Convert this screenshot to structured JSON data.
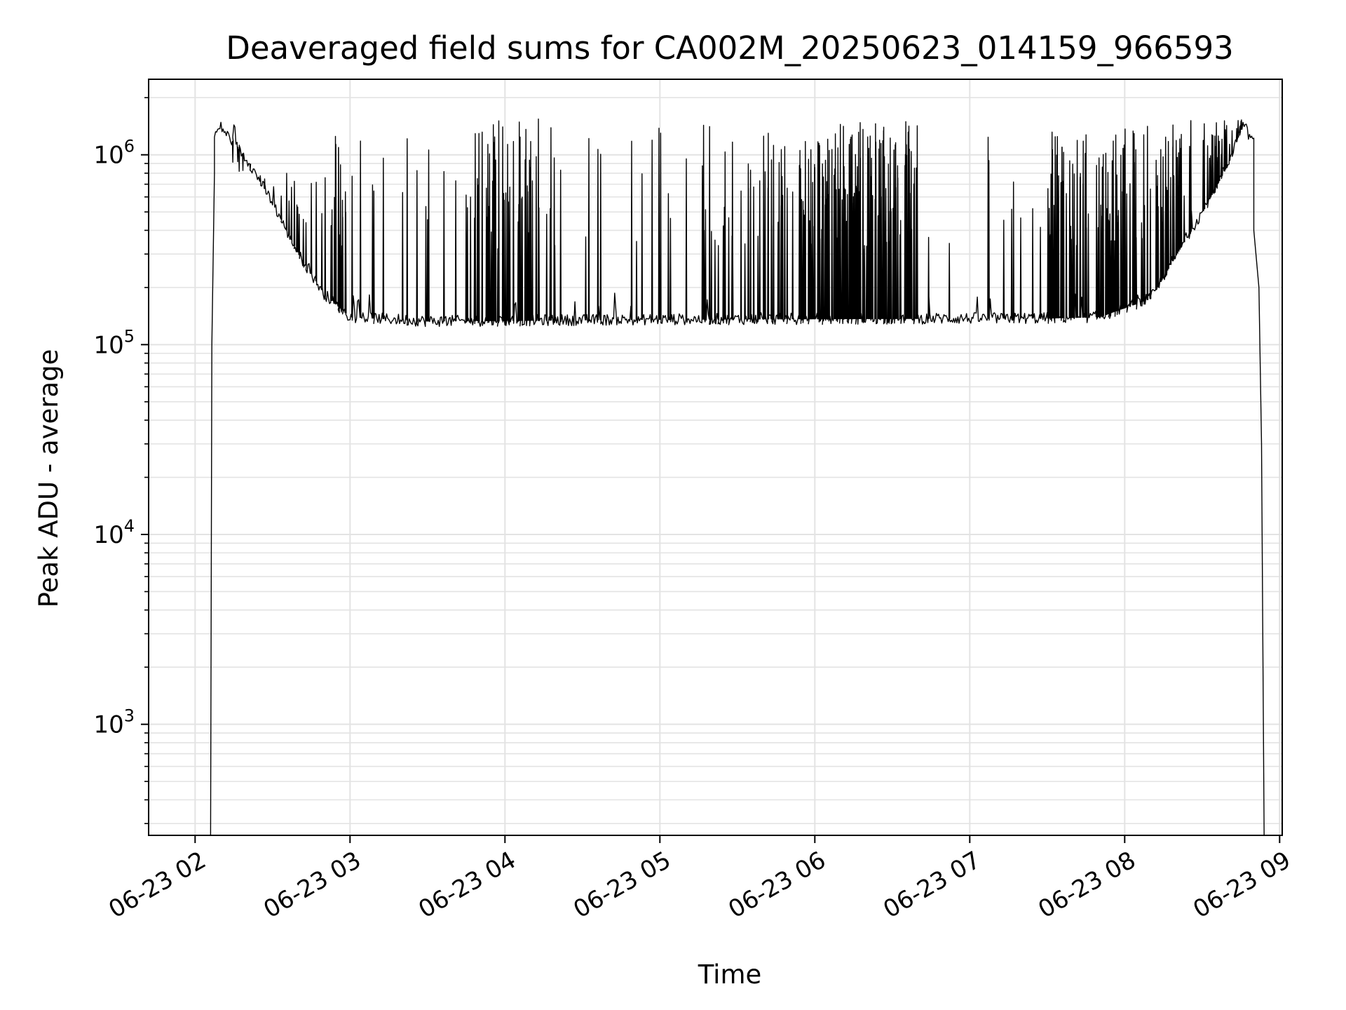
{
  "chart_data": {
    "type": "line",
    "title": "Deaveraged field sums for CA002M_20250623_014159_966593",
    "xlabel": "Time",
    "ylabel": "Peak ADU - average",
    "yscale": "log",
    "ylim": [
      260,
      2500000
    ],
    "xlim": [
      "2025-06-23T01:42:00",
      "2025-06-23T09:01:00"
    ],
    "grid": true,
    "line_color": "#000000",
    "grid_color": "#e3e3e3",
    "x_ticks": [
      {
        "value": "2025-06-23T02:00:00",
        "label": "06-23 02"
      },
      {
        "value": "2025-06-23T03:00:00",
        "label": "06-23 03"
      },
      {
        "value": "2025-06-23T04:00:00",
        "label": "06-23 04"
      },
      {
        "value": "2025-06-23T05:00:00",
        "label": "06-23 05"
      },
      {
        "value": "2025-06-23T06:00:00",
        "label": "06-23 06"
      },
      {
        "value": "2025-06-23T07:00:00",
        "label": "06-23 07"
      },
      {
        "value": "2025-06-23T08:00:00",
        "label": "06-23 08"
      },
      {
        "value": "2025-06-23T09:00:00",
        "label": "06-23 09"
      }
    ],
    "y_ticks": [
      {
        "value": 1000,
        "base": "10",
        "exp": "3"
      },
      {
        "value": 10000,
        "base": "10",
        "exp": "4"
      },
      {
        "value": 100000,
        "base": "10",
        "exp": "5"
      },
      {
        "value": 1000000,
        "base": "10",
        "exp": "6"
      }
    ],
    "baseline": [
      {
        "x": "2025-06-23T02:06:00",
        "y": 1200000
      },
      {
        "x": "2025-06-23T02:10:00",
        "y": 1400000
      },
      {
        "x": "2025-06-23T02:20:00",
        "y": 950000
      },
      {
        "x": "2025-06-23T02:30:00",
        "y": 560000
      },
      {
        "x": "2025-06-23T02:40:00",
        "y": 300000
      },
      {
        "x": "2025-06-23T02:50:00",
        "y": 185000
      },
      {
        "x": "2025-06-23T03:00:00",
        "y": 140000
      },
      {
        "x": "2025-06-23T03:30:00",
        "y": 133000
      },
      {
        "x": "2025-06-23T05:00:00",
        "y": 136000
      },
      {
        "x": "2025-06-23T07:30:00",
        "y": 138000
      },
      {
        "x": "2025-06-23T07:50:00",
        "y": 140000
      },
      {
        "x": "2025-06-23T08:10:00",
        "y": 175000
      },
      {
        "x": "2025-06-23T08:20:00",
        "y": 300000
      },
      {
        "x": "2025-06-23T08:30:00",
        "y": 500000
      },
      {
        "x": "2025-06-23T08:40:00",
        "y": 900000
      },
      {
        "x": "2025-06-23T08:46:00",
        "y": 1500000
      },
      {
        "x": "2025-06-23T08:48:00",
        "y": 1250000
      }
    ],
    "edges": {
      "start_rise": [
        {
          "x": "2025-06-23T02:06:00",
          "y": 260
        },
        {
          "x": "2025-06-23T02:06:30",
          "y": 100000
        },
        {
          "x": "2025-06-23T02:07:30",
          "y": 800000
        }
      ],
      "end_fall": [
        {
          "x": "2025-06-23T08:50:00",
          "y": 400000
        },
        {
          "x": "2025-06-23T08:52:00",
          "y": 200000
        },
        {
          "x": "2025-06-23T08:53:00",
          "y": 30000
        },
        {
          "x": "2025-06-23T08:54:00",
          "y": 260
        }
      ]
    },
    "spike_regions": [
      {
        "start": "2025-06-23T02:10:00",
        "end": "2025-06-23T02:50:00",
        "count": 20,
        "ymax": 800000
      },
      {
        "start": "2025-06-23T02:50:00",
        "end": "2025-06-23T03:00:00",
        "count": 18,
        "ymax": 1350000
      },
      {
        "start": "2025-06-23T03:00:00",
        "end": "2025-06-23T03:45:00",
        "count": 14,
        "ymax": 1300000
      },
      {
        "start": "2025-06-23T03:45:00",
        "end": "2025-06-23T04:20:00",
        "count": 60,
        "ymax": 1550000
      },
      {
        "start": "2025-06-23T04:20:00",
        "end": "2025-06-23T05:15:00",
        "count": 14,
        "ymax": 1400000
      },
      {
        "start": "2025-06-23T05:15:00",
        "end": "2025-06-23T05:55:00",
        "count": 45,
        "ymax": 1450000
      },
      {
        "start": "2025-06-23T05:55:00",
        "end": "2025-06-23T06:40:00",
        "count": 160,
        "ymax": 1500000
      },
      {
        "start": "2025-06-23T06:40:00",
        "end": "2025-06-23T07:30:00",
        "count": 10,
        "ymax": 1300000
      },
      {
        "start": "2025-06-23T07:30:00",
        "end": "2025-06-23T08:20:00",
        "count": 110,
        "ymax": 1500000
      },
      {
        "start": "2025-06-23T08:20:00",
        "end": "2025-06-23T08:46:00",
        "count": 40,
        "ymax": 1550000
      }
    ]
  }
}
